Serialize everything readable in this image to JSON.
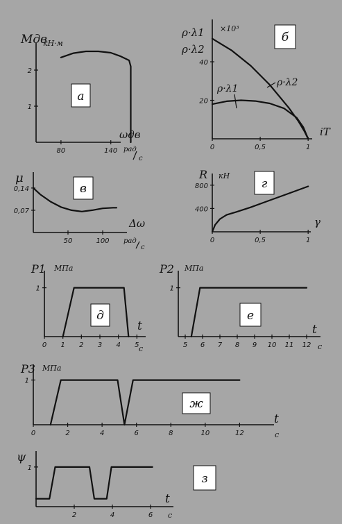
{
  "chart_data": [
    {
      "id": "a",
      "type": "line",
      "panel_label": "а",
      "ylabel": "Mдв кН·м",
      "xlabel": "ωдв рад/с",
      "xlim": [
        50,
        182
      ],
      "ylim": [
        0,
        2.75
      ],
      "xticks": [
        {
          "v": 80,
          "t": "80"
        },
        {
          "v": 140,
          "t": "140"
        }
      ],
      "yticks": [
        {
          "v": 1,
          "t": "1"
        },
        {
          "v": 2,
          "t": "2"
        }
      ],
      "series": [
        {
          "x": [
            80,
            95,
            110,
            125,
            140,
            152,
            162,
            164,
            164
          ],
          "y": [
            2.35,
            2.47,
            2.52,
            2.52,
            2.48,
            2.38,
            2.27,
            2.1,
            0
          ]
        }
      ]
    },
    {
      "id": "b",
      "type": "line",
      "panel_label": "б",
      "ylabel": "ρ·λ1 ρ·λ2 ×10³",
      "xlabel": "iT",
      "xlim": [
        0,
        1.1
      ],
      "ylim": [
        0,
        62
      ],
      "xticks": [
        {
          "v": 0,
          "t": "0"
        },
        {
          "v": 0.5,
          "t": "0,5"
        },
        {
          "v": 1,
          "t": "1"
        }
      ],
      "yticks": [
        {
          "v": 20,
          "t": "20"
        },
        {
          "v": 40,
          "t": "40"
        }
      ],
      "annotations": [
        {
          "text": "ρ·λ2",
          "x": 0.72,
          "y": 36
        },
        {
          "text": "ρ·λ1",
          "x": 0.08,
          "y": 32
        }
      ],
      "series": [
        {
          "name": "ρ·λ2",
          "x": [
            0,
            0.2,
            0.4,
            0.6,
            0.8,
            0.9,
            0.96,
            1.0
          ],
          "y": [
            52,
            46,
            38,
            28,
            16,
            9,
            4,
            0
          ]
        },
        {
          "name": "ρ·λ1",
          "x": [
            0,
            0.15,
            0.3,
            0.45,
            0.6,
            0.75,
            0.88,
            0.95,
            1.0
          ],
          "y": [
            18,
            19.5,
            20,
            19.6,
            18.4,
            15.8,
            11,
            6,
            0
          ]
        }
      ]
    },
    {
      "id": "v",
      "type": "line",
      "panel_label": "в",
      "ylabel": "μ",
      "xlabel": "Δω рад/с",
      "xlim": [
        0,
        135
      ],
      "ylim": [
        0,
        0.19
      ],
      "xticks": [
        {
          "v": 50,
          "t": "50"
        },
        {
          "v": 100,
          "t": "100"
        }
      ],
      "yticks": [
        {
          "v": 0.07,
          "t": "0,07"
        },
        {
          "v": 0.14,
          "t": "0,14"
        }
      ],
      "series": [
        {
          "x": [
            0,
            10,
            25,
            40,
            55,
            70,
            85,
            100,
            115,
            120
          ],
          "y": [
            0.14,
            0.12,
            0.097,
            0.08,
            0.07,
            0.066,
            0.07,
            0.076,
            0.078,
            0.078
          ]
        }
      ]
    },
    {
      "id": "g",
      "type": "line",
      "panel_label": "г",
      "ylabel": "R кН",
      "xlabel": "γ",
      "xlim": [
        0,
        1.1
      ],
      "ylim": [
        0,
        1000
      ],
      "xticks": [
        {
          "v": 0,
          "t": "0"
        },
        {
          "v": 0.5,
          "t": "0,5"
        },
        {
          "v": 1,
          "t": "1"
        }
      ],
      "yticks": [
        {
          "v": 400,
          "t": "400"
        },
        {
          "v": 800,
          "t": "800"
        }
      ],
      "series": [
        {
          "x": [
            0,
            0.03,
            0.08,
            0.15,
            0.25,
            0.4,
            0.6,
            0.8,
            1.0
          ],
          "y": [
            0,
            120,
            220,
            290,
            340,
            420,
            540,
            660,
            780
          ]
        }
      ]
    },
    {
      "id": "d",
      "type": "line",
      "panel_label": "д",
      "ylabel": "P1 МПа",
      "xlabel": "t c",
      "xlim": [
        0,
        5.4
      ],
      "ylim": [
        0,
        1.35
      ],
      "xticks": [
        {
          "v": 0,
          "t": "0"
        },
        {
          "v": 1,
          "t": "1"
        },
        {
          "v": 2,
          "t": "2"
        },
        {
          "v": 3,
          "t": "3"
        },
        {
          "v": 4,
          "t": "4"
        },
        {
          "v": 5,
          "t": "5"
        }
      ],
      "yticks": [
        {
          "v": 1,
          "t": "1"
        }
      ],
      "series": [
        {
          "x": [
            1,
            1.6,
            4.3,
            4.55
          ],
          "y": [
            0,
            1,
            1,
            0
          ]
        }
      ]
    },
    {
      "id": "e",
      "type": "line",
      "panel_label": "е",
      "ylabel": "P2 МПа",
      "xlabel": "t c",
      "xlim": [
        4.6,
        12.8
      ],
      "ylim": [
        0,
        1.35
      ],
      "xticks": [
        {
          "v": 5,
          "t": "5"
        },
        {
          "v": 6,
          "t": "6"
        },
        {
          "v": 7,
          "t": "7"
        },
        {
          "v": 8,
          "t": "8"
        },
        {
          "v": 9,
          "t": "9"
        },
        {
          "v": 10,
          "t": "10"
        },
        {
          "v": 11,
          "t": "11"
        },
        {
          "v": 12,
          "t": "12"
        }
      ],
      "yticks": [
        {
          "v": 1,
          "t": "1"
        }
      ],
      "series": [
        {
          "x": [
            5.35,
            5.85,
            12.0
          ],
          "y": [
            0,
            1,
            1
          ]
        }
      ]
    },
    {
      "id": "zh",
      "type": "line",
      "panel_label": "ж",
      "ylabel": "P3 МПа",
      "xlabel": "t c",
      "xlim": [
        0,
        14
      ],
      "ylim": [
        0,
        1.35
      ],
      "xticks": [
        {
          "v": 0,
          "t": "0"
        },
        {
          "v": 2,
          "t": "2"
        },
        {
          "v": 4,
          "t": "4"
        },
        {
          "v": 6,
          "t": "6"
        },
        {
          "v": 8,
          "t": "8"
        },
        {
          "v": 10,
          "t": "10"
        },
        {
          "v": 12,
          "t": "12"
        }
      ],
      "yticks": [
        {
          "v": 1,
          "t": "1"
        }
      ],
      "series": [
        {
          "x": [
            1,
            1.6,
            4.9,
            5.3,
            5.8,
            12.0
          ],
          "y": [
            0,
            1,
            1,
            0,
            1,
            1
          ]
        }
      ]
    },
    {
      "id": "z",
      "type": "line",
      "panel_label": "з",
      "ylabel": "ψ",
      "xlabel": "t c",
      "xlim": [
        0,
        7.2
      ],
      "ylim": [
        0,
        1.4
      ],
      "xticks": [
        {
          "v": 2,
          "t": "2"
        },
        {
          "v": 4,
          "t": "4"
        },
        {
          "v": 6,
          "t": "6"
        }
      ],
      "yticks": [
        {
          "v": 1,
          "t": "1"
        }
      ],
      "series": [
        {
          "x": [
            0,
            0.7,
            1,
            2.8,
            3.05,
            3.7,
            3.95,
            6.1
          ],
          "y": [
            0.2,
            0.2,
            1,
            1,
            0.2,
            0.2,
            1,
            1
          ]
        }
      ]
    }
  ],
  "labels": {
    "a": {
      "y_sym": "Mдв",
      "y_unit": "кН·м",
      "x_sym": "ωдв",
      "x_unit1": "рад",
      "x_unit2": "с"
    },
    "b": {
      "y_top": "ρ·λ1",
      "y_bot": "ρ·λ2",
      "mult": "×10³",
      "x_sym": "iT",
      "c2": "ρ·λ2",
      "c1": "ρ·λ1"
    },
    "v": {
      "y_sym": "μ",
      "x_sym": "Δω",
      "x_unit1": "рад",
      "x_unit2": "с"
    },
    "g": {
      "y_sym": "R",
      "y_unit": "кН",
      "x_sym": "γ"
    },
    "d": {
      "y_sym": "P1",
      "y_unit": "МПа",
      "x_sym": "t",
      "x_unit": "с"
    },
    "e": {
      "y_sym": "P2",
      "y_unit": "МПа",
      "x_sym": "t",
      "x_unit": "с"
    },
    "zh": {
      "y_sym": "P3",
      "y_unit": "МПа",
      "x_sym": "t",
      "x_unit": "с"
    },
    "z": {
      "y_sym": "ψ",
      "x_sym": "t",
      "x_unit": "с"
    }
  }
}
